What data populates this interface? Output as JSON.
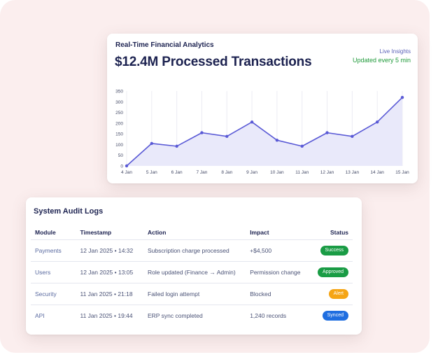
{
  "analytics": {
    "title": "Real-Time Financial Analytics",
    "headline": "$12.4M Processed Transactions",
    "live_label": "Live Insights",
    "update_label": "Updated every 5 min"
  },
  "chart_data": {
    "type": "area",
    "x": [
      "4 Jan",
      "5 Jan",
      "6 Jan",
      "7 Jan",
      "8 Jan",
      "9 Jan",
      "10 Jan",
      "11 Jan",
      "12 Jan",
      "13 Jan",
      "14 Jan",
      "15 Jan"
    ],
    "series": [
      {
        "values": [
          0,
          105,
          92,
          155,
          138,
          205,
          120,
          92,
          155,
          138,
          205,
          320
        ]
      }
    ],
    "yticks": [
      0,
      50,
      100,
      150,
      200,
      250,
      300,
      350
    ],
    "ylim": [
      0,
      350
    ],
    "grid": "vertical",
    "colors": {
      "line": "#5a5ad6",
      "fill": "#e9e9fa",
      "grid": "#ececf3"
    }
  },
  "audit": {
    "title": "System Audit Logs",
    "columns": [
      "Module",
      "Timestamp",
      "Action",
      "Impact",
      "Status"
    ],
    "rows": [
      {
        "module": "Payments",
        "timestamp": "12 Jan 2025 • 14:32",
        "action": "Subscription charge processed",
        "impact": "+$4,500",
        "status": "Success",
        "status_color": "#1a9c45"
      },
      {
        "module": "Users",
        "timestamp": "12 Jan 2025 • 13:05",
        "action": "Role updated (Finance → Admin)",
        "impact": "Permission change",
        "status": "Approved",
        "status_color": "#1a9c45"
      },
      {
        "module": "Security",
        "timestamp": "11 Jan 2025 • 21:18",
        "action": "Failed login attempt",
        "impact": "Blocked",
        "status": "Alert",
        "status_color": "#f5a516"
      },
      {
        "module": "API",
        "timestamp": "11 Jan 2025 • 19:44",
        "action": "ERP sync completed",
        "impact": "1,240 records",
        "status": "Synced",
        "status_color": "#1f6ee0"
      }
    ]
  }
}
